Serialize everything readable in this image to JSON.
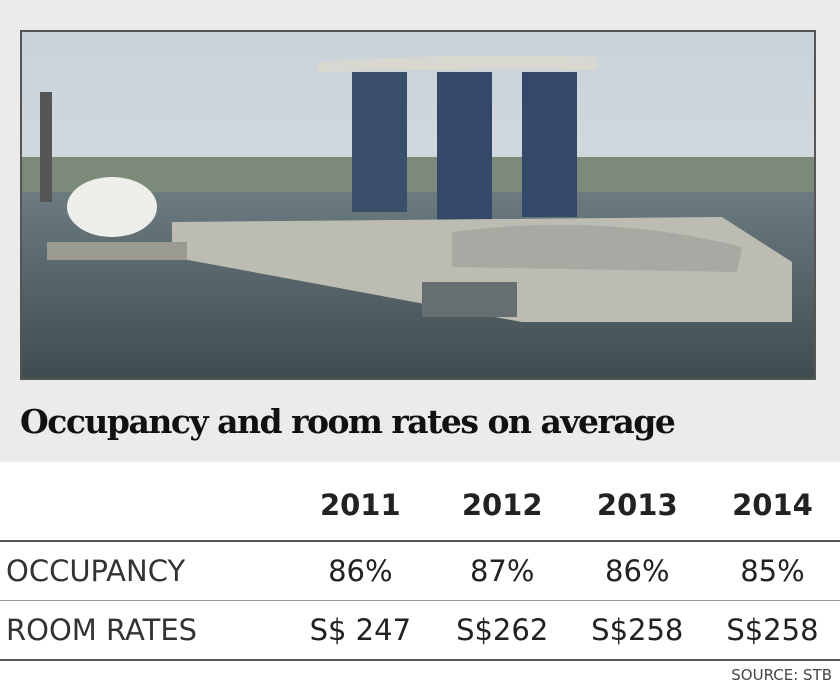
{
  "title": "Occupancy and room rates on average",
  "table": {
    "header": [
      "2011",
      "2012",
      "2013",
      "2014"
    ],
    "rows": [
      {
        "label": "OCCUPANCY",
        "cells": [
          "86%",
          "87%",
          "86%",
          "85%"
        ]
      },
      {
        "label": "ROOM RATES",
        "cells": [
          "S$ 247",
          "S$262",
          "S$258",
          "S$258"
        ]
      }
    ]
  },
  "source": "SOURCE: STB"
}
